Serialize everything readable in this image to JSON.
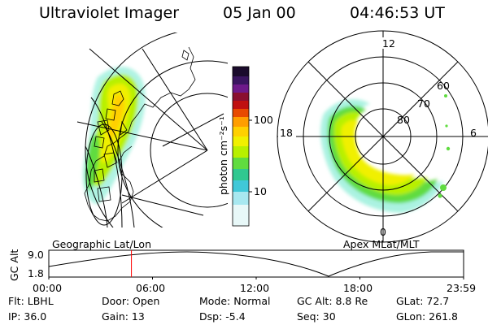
{
  "header": {
    "title": "Ultraviolet Imager",
    "date": "05 Jan 00",
    "time": "04:46:53 UT"
  },
  "colorbar": {
    "label": "photon cm⁻²s⁻¹",
    "ticks": [
      "100",
      "10"
    ],
    "colors": [
      "#1a0b2c",
      "#3a1560",
      "#6e1a8a",
      "#8a1030",
      "#c01010",
      "#e84a00",
      "#ff9e00",
      "#ffd000",
      "#f0f000",
      "#b8f000",
      "#60dc40",
      "#30c890",
      "#40c8d8",
      "#a8e8f0",
      "#e8f8f8"
    ]
  },
  "geo_panel": {
    "label": "Geographic Lat/Lon"
  },
  "polar_panel": {
    "label": "Apex MLat/MLT",
    "mlt_labels": [
      "12",
      "18",
      "6",
      "0"
    ],
    "lat_labels": [
      "60",
      "70",
      "80"
    ]
  },
  "orbit_plot": {
    "ylabel": "GC Alt",
    "yticks": [
      "9.0",
      "1.8"
    ],
    "xticks": [
      "00:00",
      "06:00",
      "12:00",
      "18:00",
      "23:59"
    ],
    "current_time_hours": 4.78,
    "marker_color": "#ff0000"
  },
  "info": {
    "filter": "Flt: LBHL",
    "ip": "IP: 36.0",
    "door": "Door: Open",
    "gain": "Gain: 13",
    "mode": "Mode: Normal",
    "dsp": "Dsp:    -5.4",
    "gc_alt": "GC Alt: 8.8 Re",
    "seq": "Seq: 30",
    "glat": "GLat:  72.7",
    "glon": "GLon: 261.8"
  }
}
